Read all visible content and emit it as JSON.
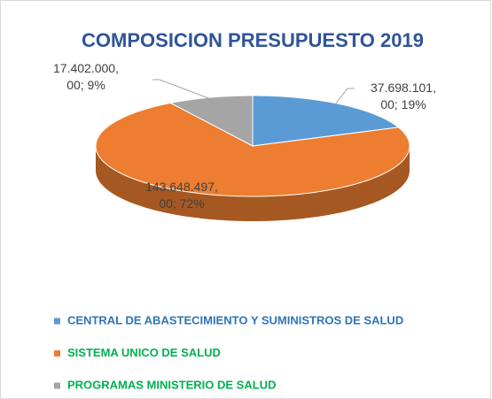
{
  "chart_data": {
    "type": "pie",
    "title": "COMPOSICION PRESUPUESTO 2019",
    "categories": [
      "CENTRAL DE ABASTECIMIENTO Y SUMINISTROS DE SALUD",
      "SISTEMA UNICO DE SALUD",
      "PROGRAMAS MINISTERIO DE SALUD"
    ],
    "values": [
      37698101,
      143648497,
      17402000
    ],
    "value_labels": [
      "37.698.101,00; 19%",
      "143.648.497,00; 72%",
      "17.402.000,00; 9%"
    ],
    "colors": [
      "#5b9bd5",
      "#ed7d31",
      "#a5a5a5"
    ],
    "legend": "bottom"
  }
}
